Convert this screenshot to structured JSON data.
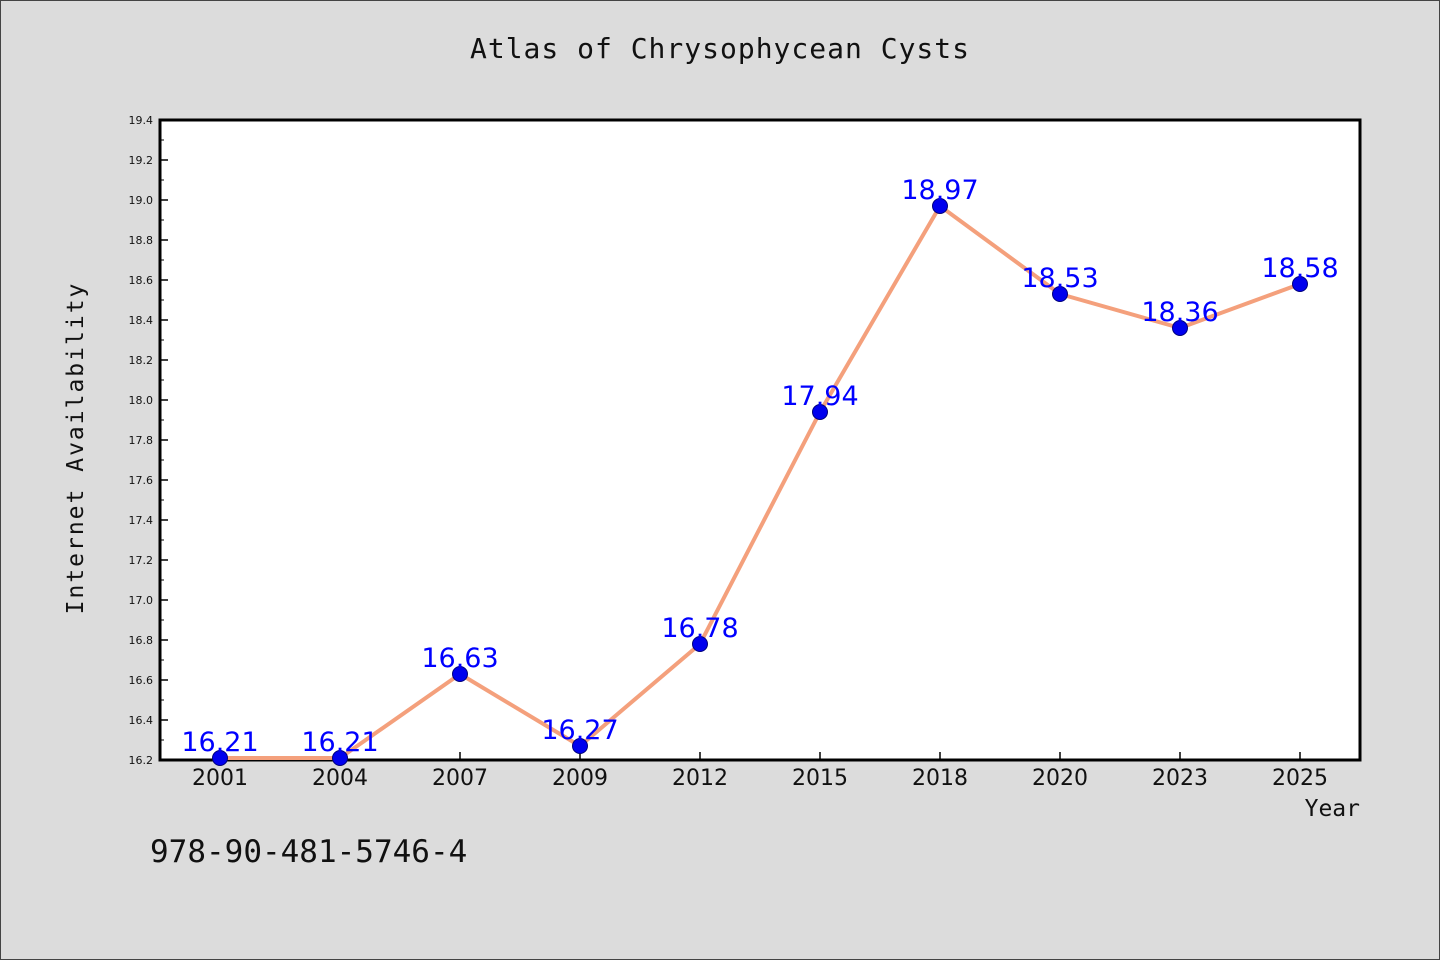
{
  "watermark": "978-90-481-5746-4",
  "colors": {
    "background": "#dcdcdc",
    "plot_area": "#ffffff",
    "line": "#f4a07c",
    "marker": "#0000ee",
    "data_label": "#0000ff"
  },
  "chart_data": {
    "type": "line",
    "title": "Atlas of Chrysophycean Cysts",
    "xlabel": "Year",
    "ylabel": "Internet Availability",
    "categories": [
      "2001",
      "2004",
      "2007",
      "2009",
      "2012",
      "2015",
      "2018",
      "2020",
      "2023",
      "2025"
    ],
    "series": [
      {
        "values": [
          16.21,
          16.21,
          16.63,
          16.27,
          16.78,
          17.94,
          18.97,
          18.53,
          18.36,
          18.58
        ],
        "labels": [
          "16.21",
          "16.21",
          "16.63",
          "16.27",
          "16.78",
          "17.94",
          "18.97",
          "18.53",
          "18.36",
          "18.58"
        ]
      }
    ],
    "ylim": [
      16.2,
      19.4
    ],
    "yticks": [
      "16.2",
      "16.4",
      "16.6",
      "16.8",
      "17.0",
      "17.2",
      "17.4",
      "17.6",
      "17.8",
      "18.0",
      "18.2",
      "18.4",
      "18.6",
      "18.8",
      "19.0",
      "19.2",
      "19.4"
    ],
    "grid": false,
    "legend": "none",
    "data_labels": true
  }
}
